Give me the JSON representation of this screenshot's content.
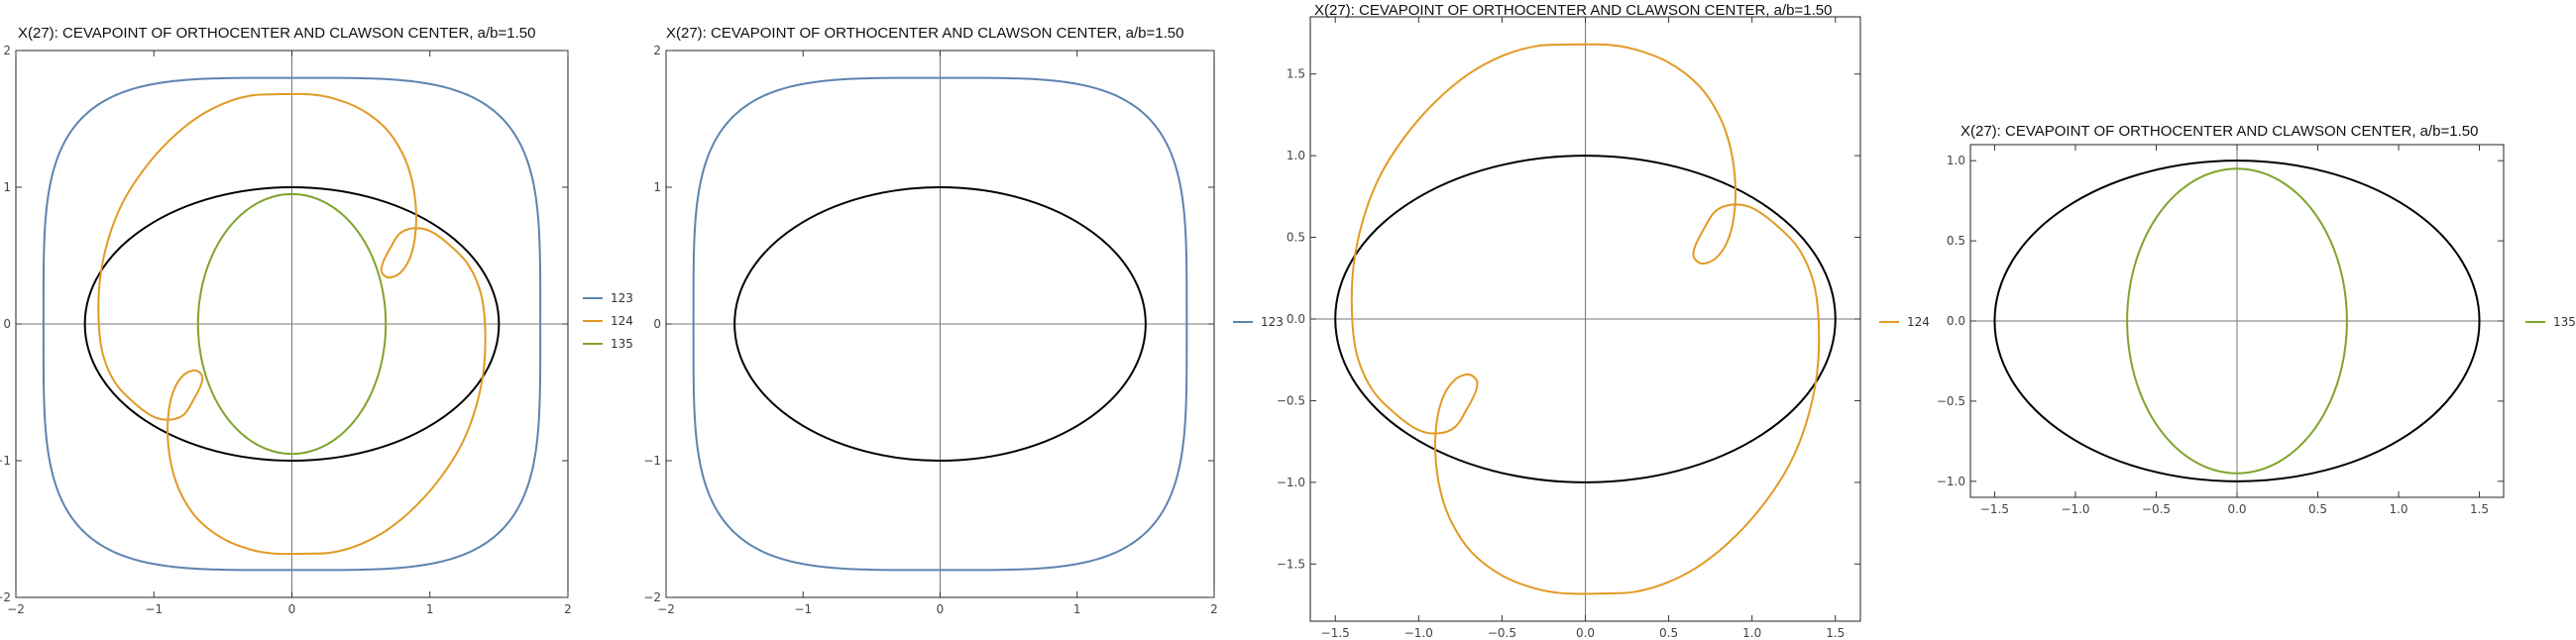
{
  "chart_data": [
    {
      "type": "line",
      "title": "X(27): CEVAPOINT OF ORTHOCENTER AND CLAWSON CENTER, a/b=1.50",
      "xlim": [
        -2,
        2
      ],
      "ylim": [
        -2,
        2
      ],
      "xticks": [
        -2,
        -1,
        0,
        1,
        2
      ],
      "yticks": [
        -2,
        -1,
        0,
        1,
        2
      ],
      "ellipse": {
        "a": 1.5,
        "b": 1,
        "color": "#000000"
      },
      "legend_position": "right",
      "series": [
        {
          "name": "123",
          "color": "#5B84B1",
          "kind": "superellipse",
          "rx": 1.8,
          "ry": 1.8,
          "n": 4
        },
        {
          "name": "124",
          "color": "#E29A24",
          "kind": "loop_curve"
        },
        {
          "name": "135",
          "color": "#7FA42B",
          "kind": "ellipse",
          "rx": 0.68,
          "ry": 0.95
        }
      ]
    },
    {
      "type": "line",
      "title": "X(27): CEVAPOINT OF ORTHOCENTER AND CLAWSON CENTER, a/b=1.50",
      "xlim": [
        -2,
        2
      ],
      "ylim": [
        -2,
        2
      ],
      "xticks": [
        -2,
        -1,
        0,
        1,
        2
      ],
      "yticks": [
        -2,
        -1,
        0,
        1,
        2
      ],
      "ellipse": {
        "a": 1.5,
        "b": 1,
        "color": "#000000"
      },
      "legend_position": "right",
      "series": [
        {
          "name": "123",
          "color": "#5B84B1",
          "kind": "superellipse",
          "rx": 1.8,
          "ry": 1.8,
          "n": 4
        }
      ]
    },
    {
      "type": "line",
      "title": "X(27): CEVAPOINT OF ORTHOCENTER AND CLAWSON CENTER, a/b=1.50",
      "xlim": [
        -1.65,
        1.65
      ],
      "ylim": [
        -1.85,
        1.85
      ],
      "xticks": [
        -1.5,
        -1.0,
        -0.5,
        0.0,
        0.5,
        1.0,
        1.5
      ],
      "yticks": [
        -1.5,
        -1.0,
        -0.5,
        0.0,
        0.5,
        1.0,
        1.5
      ],
      "ellipse": {
        "a": 1.5,
        "b": 1,
        "color": "#000000"
      },
      "legend_position": "right",
      "series": [
        {
          "name": "124",
          "color": "#E29A24",
          "kind": "loop_curve"
        }
      ]
    },
    {
      "type": "line",
      "title": "X(27): CEVAPOINT OF ORTHOCENTER AND CLAWSON CENTER, a/b=1.50",
      "xlim": [
        -1.65,
        1.65
      ],
      "ylim": [
        -1.1,
        1.1
      ],
      "xticks": [
        -1.5,
        -1.0,
        -0.5,
        0.0,
        0.5,
        1.0,
        1.5
      ],
      "yticks": [
        -1.0,
        -0.5,
        0.0,
        0.5,
        1.0
      ],
      "ellipse": {
        "a": 1.5,
        "b": 1,
        "color": "#000000"
      },
      "legend_position": "right",
      "series": [
        {
          "name": "135",
          "color": "#7FA42B",
          "kind": "ellipse",
          "rx": 0.68,
          "ry": 0.95
        }
      ]
    }
  ]
}
